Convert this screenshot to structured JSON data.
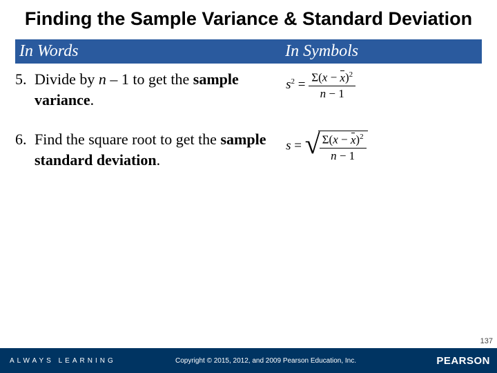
{
  "title": "Finding the Sample Variance & Standard Deviation",
  "title_fontsize": 27,
  "header": {
    "words": "In Words",
    "symbols": "In Symbols",
    "fontsize": 24,
    "bg_color": "#2a5a9e",
    "text_color": "#ffffff"
  },
  "items": [
    {
      "num": "5.",
      "prefix": "Divide by ",
      "var": "n",
      "mid": " – 1 to get the ",
      "bold": "sample variance",
      "suffix": "."
    },
    {
      "num": "6.",
      "prefix": "Find the square root to get the ",
      "var": "",
      "mid": "",
      "bold": "sample standard deviation",
      "suffix": "."
    }
  ],
  "body_fontsize": 22,
  "footer": {
    "left": "ALWAYS LEARNING",
    "center": "Copyright © 2015, 2012, and 2009 Pearson Education, Inc.",
    "right": "PEARSON",
    "bg_color": "#003462"
  },
  "page_number": "137"
}
